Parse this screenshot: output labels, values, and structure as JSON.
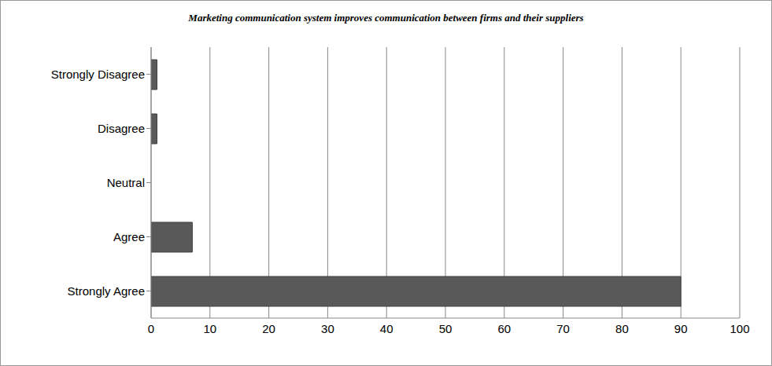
{
  "chart_data": {
    "type": "bar",
    "title": "Marketing communication system improves communication between firms and their suppliers",
    "categories": [
      "Strongly Disagree",
      "Disagree",
      "Neutral",
      "Agree",
      "Strongly Agree"
    ],
    "values": [
      1,
      1,
      0,
      7,
      90
    ],
    "color": "#595959",
    "orientation": "horizontal",
    "xlim": [
      0,
      100
    ],
    "xticks": [
      0,
      10,
      20,
      30,
      40,
      50,
      60,
      70,
      80,
      90,
      100
    ],
    "grid": true
  }
}
